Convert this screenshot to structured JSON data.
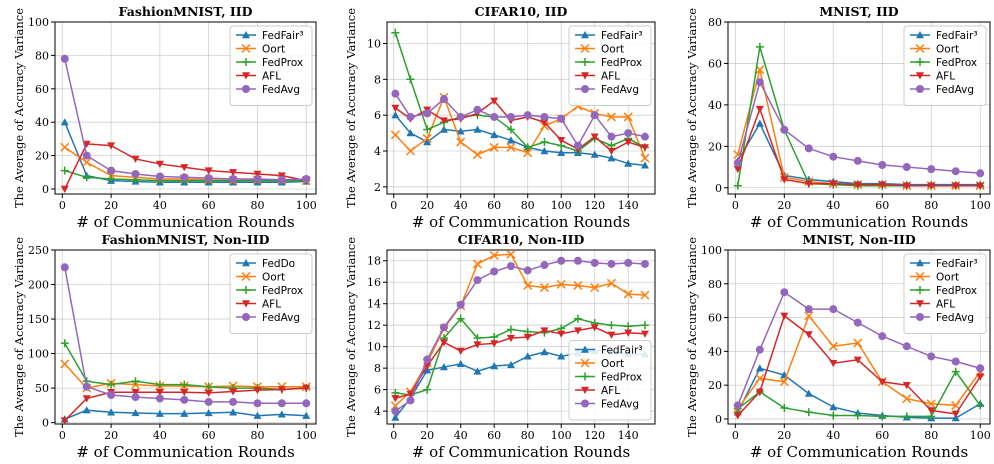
{
  "figure": {
    "series_styles": {
      "FedFair3": {
        "color": "#1f77b4",
        "marker": "triangle"
      },
      "FedDo": {
        "color": "#1f77b4",
        "marker": "triangle"
      },
      "Oort": {
        "color": "#ff7f0e",
        "marker": "x"
      },
      "FedProx": {
        "color": "#2ca02c",
        "marker": "plus"
      },
      "AFL": {
        "color": "#d62728",
        "marker": "triangle-down"
      },
      "FedAvg": {
        "color": "#9467bd",
        "marker": "circle"
      }
    }
  },
  "chart_data": [
    {
      "type": "line",
      "title": "FashionMNIST, IID",
      "xlabel": "# of Communication Rounds",
      "ylabel": "The Average of Accuracy Variance",
      "x": [
        1,
        10,
        20,
        30,
        40,
        50,
        60,
        70,
        80,
        90,
        100
      ],
      "xlim": [
        -3,
        104
      ],
      "ylim": [
        -3,
        100
      ],
      "xticks": [
        0,
        20,
        40,
        60,
        80,
        100
      ],
      "yticks": [
        0,
        20,
        40,
        60,
        80,
        100
      ],
      "grid": true,
      "legend": "top-right",
      "series": [
        {
          "name": "FedFair³",
          "style": "FedFair3",
          "values": [
            40,
            8,
            5,
            4.5,
            4,
            4,
            4,
            4,
            4,
            4,
            4.5
          ]
        },
        {
          "name": "Oort",
          "style": "Oort",
          "values": [
            25,
            16,
            8,
            7,
            6,
            6,
            5.5,
            5,
            5.5,
            5.5,
            5
          ]
        },
        {
          "name": "FedProx",
          "style": "FedProx",
          "values": [
            11,
            7,
            6,
            5.5,
            5,
            5,
            5,
            5,
            5,
            5,
            5
          ]
        },
        {
          "name": "AFL",
          "style": "AFL",
          "values": [
            0,
            27,
            26,
            18,
            15,
            13,
            11,
            10,
            9,
            8,
            5
          ]
        },
        {
          "name": "FedAvg",
          "style": "FedAvg",
          "values": [
            78,
            20,
            11,
            9,
            7.5,
            7,
            6.5,
            6,
            6,
            5.5,
            6
          ]
        }
      ]
    },
    {
      "type": "line",
      "title": "CIFAR10, IID",
      "xlabel": "# of Communication Rounds",
      "ylabel": "The Average of Accuracy Variance",
      "x": [
        1,
        10,
        20,
        30,
        40,
        50,
        60,
        70,
        80,
        90,
        100,
        110,
        120,
        130,
        140,
        150
      ],
      "xlim": [
        -4,
        156
      ],
      "ylim": [
        1.6,
        11.2
      ],
      "xticks": [
        0,
        20,
        40,
        60,
        80,
        100,
        120,
        140
      ],
      "yticks": [
        2,
        4,
        6,
        8,
        10
      ],
      "grid": true,
      "legend": "top-right",
      "series": [
        {
          "name": "FedFair³",
          "style": "FedFair3",
          "values": [
            6,
            5,
            4.5,
            5.2,
            5.1,
            5.2,
            4.9,
            4.6,
            4.2,
            4,
            3.9,
            3.9,
            3.8,
            3.6,
            3.3,
            3.2
          ]
        },
        {
          "name": "Oort",
          "style": "Oort",
          "values": [
            4.9,
            4,
            4.7,
            7,
            4.5,
            3.8,
            4.2,
            4.2,
            3.9,
            5.4,
            5.8,
            6.5,
            6.1,
            5.9,
            5.9,
            3.6
          ]
        },
        {
          "name": "FedProx",
          "style": "FedProx",
          "values": [
            10.6,
            8,
            5.2,
            5.6,
            5.9,
            6,
            5.9,
            5.2,
            4.2,
            4.5,
            4.3,
            4,
            4.7,
            4.3,
            4.7,
            4.2
          ]
        },
        {
          "name": "AFL",
          "style": "AFL",
          "values": [
            6.4,
            5.8,
            6.3,
            5.7,
            5.8,
            6.1,
            6.8,
            5.7,
            5.9,
            5.6,
            4.6,
            4.1,
            4.8,
            4,
            4.5,
            4.2
          ]
        },
        {
          "name": "FedAvg",
          "style": "FedAvg",
          "values": [
            7.2,
            5.9,
            6.1,
            6.9,
            5.9,
            6.3,
            5.9,
            5.9,
            6,
            5.9,
            5.8,
            4.3,
            6,
            4.8,
            5,
            4.8
          ]
        }
      ]
    },
    {
      "type": "line",
      "title": "MNIST, IID",
      "xlabel": "# of Communication Rounds",
      "ylabel": "The Average of Accuracy Variance",
      "x": [
        1,
        10,
        20,
        30,
        40,
        50,
        60,
        70,
        80,
        90,
        100
      ],
      "xlim": [
        -3,
        104
      ],
      "ylim": [
        -3,
        80
      ],
      "xticks": [
        0,
        20,
        40,
        60,
        80,
        100
      ],
      "yticks": [
        0,
        20,
        40,
        60,
        80
      ],
      "grid": true,
      "legend": "top-right",
      "series": [
        {
          "name": "FedFair³",
          "style": "FedFair3",
          "values": [
            13,
            31,
            6,
            4,
            3,
            2,
            2,
            1.5,
            1.5,
            1.5,
            1.5
          ]
        },
        {
          "name": "Oort",
          "style": "Oort",
          "values": [
            16,
            57,
            5,
            3,
            2,
            1.5,
            1.5,
            1,
            1,
            1,
            1
          ]
        },
        {
          "name": "FedProx",
          "style": "FedProx",
          "values": [
            1,
            68,
            28,
            2,
            1.5,
            1,
            1,
            1,
            1,
            1,
            1
          ]
        },
        {
          "name": "AFL",
          "style": "AFL",
          "values": [
            9,
            38,
            4,
            2,
            2,
            1.5,
            1.5,
            1,
            1,
            1,
            1
          ]
        },
        {
          "name": "FedAvg",
          "style": "FedAvg",
          "values": [
            12,
            51,
            28,
            19,
            15,
            13,
            11,
            10,
            9,
            8,
            7
          ]
        }
      ]
    },
    {
      "type": "line",
      "title": "FashionMNIST, Non-IID",
      "xlabel": "# of Communication Rounds",
      "ylabel": "The Average of Accuracy Variance",
      "x": [
        1,
        10,
        20,
        30,
        40,
        50,
        60,
        70,
        80,
        90,
        100
      ],
      "xlim": [
        -3,
        104
      ],
      "ylim": [
        -2,
        250
      ],
      "xticks": [
        0,
        20,
        40,
        60,
        80,
        100
      ],
      "yticks": [
        0,
        50,
        100,
        150,
        200,
        250
      ],
      "grid": true,
      "legend": "top-right",
      "series": [
        {
          "name": "FedDo",
          "style": "FedDo",
          "values": [
            5,
            18,
            15,
            14,
            13,
            13,
            14,
            15,
            10,
            12,
            10
          ]
        },
        {
          "name": "Oort",
          "style": "Oort",
          "values": [
            85,
            50,
            57,
            55,
            53,
            53,
            52,
            53,
            52,
            52,
            52
          ]
        },
        {
          "name": "FedProx",
          "style": "FedProx",
          "values": [
            115,
            60,
            55,
            60,
            55,
            55,
            52,
            50,
            50,
            48,
            50
          ]
        },
        {
          "name": "AFL",
          "style": "AFL",
          "values": [
            3,
            35,
            44,
            44,
            44,
            44,
            43,
            45,
            47,
            48,
            50
          ]
        },
        {
          "name": "FedAvg",
          "style": "FedAvg",
          "values": [
            225,
            52,
            40,
            37,
            35,
            33,
            30,
            30,
            28,
            28,
            28
          ]
        }
      ]
    },
    {
      "type": "line",
      "title": "CIFAR10, Non-IID",
      "xlabel": "# of Communication Rounds",
      "ylabel": "The Average of Accuracy Variance",
      "x": [
        1,
        10,
        20,
        30,
        40,
        50,
        60,
        70,
        80,
        90,
        100,
        110,
        120,
        130,
        140,
        150
      ],
      "xlim": [
        -4,
        156
      ],
      "ylim": [
        2.8,
        19
      ],
      "xticks": [
        0,
        20,
        40,
        60,
        80,
        100,
        120,
        140
      ],
      "yticks": [
        4,
        6,
        8,
        10,
        12,
        14,
        16,
        18
      ],
      "grid": true,
      "legend": "bottom-right",
      "series": [
        {
          "name": "FedFair³",
          "style": "FedFair3",
          "values": [
            3.4,
            5.2,
            7.8,
            8.1,
            8.4,
            7.7,
            8.2,
            8.3,
            9.1,
            9.5,
            9.1,
            9.4,
            9.6,
            9.6,
            9.3,
            9.3
          ]
        },
        {
          "name": "Oort",
          "style": "Oort",
          "values": [
            4.5,
            5.8,
            8.5,
            11.7,
            13.8,
            17.7,
            18.5,
            18.6,
            15.7,
            15.5,
            15.8,
            15.7,
            15.5,
            15.9,
            14.9,
            14.8
          ]
        },
        {
          "name": "FedProx",
          "style": "FedProx",
          "values": [
            5.7,
            5.5,
            6,
            10.8,
            12.6,
            10.8,
            10.9,
            11.6,
            11.4,
            11.3,
            11.7,
            12.6,
            12.2,
            12,
            11.9,
            12
          ]
        },
        {
          "name": "AFL",
          "style": "AFL",
          "values": [
            5.2,
            5.6,
            8.2,
            10.4,
            9.6,
            10.2,
            10.3,
            10.8,
            10.9,
            11.5,
            11.2,
            11.5,
            11.8,
            11.1,
            11.3,
            11.2
          ]
        },
        {
          "name": "FedAvg",
          "style": "FedAvg",
          "values": [
            4,
            5,
            8.8,
            11.8,
            13.9,
            16.2,
            17,
            17.5,
            17.1,
            17.6,
            18,
            18,
            17.8,
            17.7,
            17.8,
            17.7
          ]
        }
      ]
    },
    {
      "type": "line",
      "title": "MNIST, Non-IID",
      "xlabel": "# of Communication Rounds",
      "ylabel": "The Average of Accuracy Variance",
      "x": [
        1,
        10,
        20,
        30,
        40,
        50,
        60,
        70,
        80,
        90,
        100
      ],
      "xlim": [
        -3,
        104
      ],
      "ylim": [
        -3,
        100
      ],
      "xticks": [
        0,
        20,
        40,
        60,
        80,
        100
      ],
      "yticks": [
        0,
        20,
        40,
        60,
        80,
        100
      ],
      "grid": true,
      "legend": "top-right",
      "series": [
        {
          "name": "FedFair³",
          "style": "FedFair3",
          "values": [
            4,
            30,
            26,
            15,
            7,
            3.5,
            2,
            1,
            0.5,
            0.5,
            9
          ]
        },
        {
          "name": "Oort",
          "style": "Oort",
          "values": [
            6,
            24,
            22,
            61,
            43,
            45,
            22,
            12,
            9,
            8,
            28
          ]
        },
        {
          "name": "FedProx",
          "style": "FedProx",
          "values": [
            6,
            16,
            6.5,
            4,
            2,
            2,
            1.5,
            1.5,
            1.5,
            28,
            8
          ]
        },
        {
          "name": "AFL",
          "style": "AFL",
          "values": [
            2,
            16,
            61,
            50,
            33,
            35,
            22,
            20,
            5,
            3,
            25
          ]
        },
        {
          "name": "FedAvg",
          "style": "FedAvg",
          "values": [
            8,
            41,
            75,
            65,
            65,
            57,
            49,
            43,
            37,
            34,
            30
          ]
        }
      ]
    }
  ]
}
